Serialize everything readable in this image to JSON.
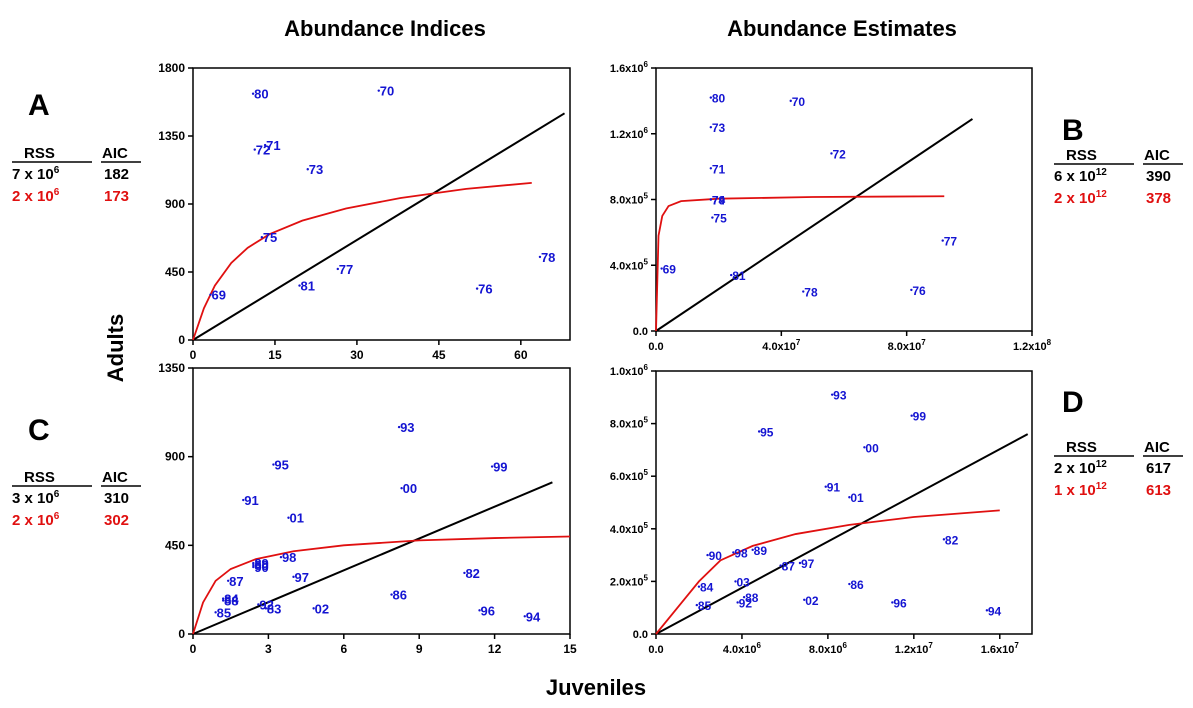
{
  "column_titles": {
    "left": "Abundance Indices",
    "right": "Abundance Estimates"
  },
  "y_axis_label": "Adults",
  "x_axis_label": "Juveniles",
  "colors": {
    "points": "#1414d2",
    "linear": "#000000",
    "curve": "#e01010",
    "red_text": "#e01010"
  },
  "panels": [
    {
      "letter": "A",
      "stats": {
        "rss_header": "RSS",
        "aic_header": "AIC",
        "rows": [
          {
            "rss": "7 x 10",
            "exp": "6",
            "aic": "182",
            "color": "#000000"
          },
          {
            "rss": "2 x 10",
            "exp": "6",
            "aic": "173",
            "color": "#e01010"
          }
        ]
      }
    },
    {
      "letter": "B",
      "stats": {
        "rss_header": "RSS",
        "aic_header": "AIC",
        "rows": [
          {
            "rss": "6 x 10",
            "exp": "12",
            "aic": "390",
            "color": "#000000"
          },
          {
            "rss": "2 x 10",
            "exp": "12",
            "aic": "378",
            "color": "#e01010"
          }
        ]
      }
    },
    {
      "letter": "C",
      "stats": {
        "rss_header": "RSS",
        "aic_header": "AIC",
        "rows": [
          {
            "rss": "3 x 10",
            "exp": "6",
            "aic": "310",
            "color": "#000000"
          },
          {
            "rss": "2 x 10",
            "exp": "6",
            "aic": "302",
            "color": "#e01010"
          }
        ]
      }
    },
    {
      "letter": "D",
      "stats": {
        "rss_header": "RSS",
        "aic_header": "AIC",
        "rows": [
          {
            "rss": "2 x 10",
            "exp": "12",
            "aic": "617",
            "color": "#000000"
          },
          {
            "rss": "1 x 10",
            "exp": "12",
            "aic": "613",
            "color": "#e01010"
          }
        ]
      }
    }
  ],
  "chart_data": [
    {
      "panel": "A",
      "type": "scatter",
      "x_range": [
        0,
        69
      ],
      "y_range": [
        0,
        1800
      ],
      "x_ticks": [
        {
          "v": 0,
          "l": "0"
        },
        {
          "v": 15,
          "l": "15"
        },
        {
          "v": 30,
          "l": "30"
        },
        {
          "v": 45,
          "l": "45"
        },
        {
          "v": 60,
          "l": "60"
        }
      ],
      "y_ticks": [
        {
          "v": 0,
          "l": "0"
        },
        {
          "v": 450,
          "l": "450"
        },
        {
          "v": 900,
          "l": "900"
        },
        {
          "v": 1350,
          "l": "1350"
        },
        {
          "v": 1800,
          "l": "1800"
        }
      ],
      "points": [
        {
          "label": "69",
          "x": 3.2,
          "y": 300
        },
        {
          "label": "70",
          "x": 34,
          "y": 1650
        },
        {
          "label": "71",
          "x": 13.2,
          "y": 1290
        },
        {
          "label": "72",
          "x": 11.3,
          "y": 1260
        },
        {
          "label": "73",
          "x": 21,
          "y": 1130
        },
        {
          "label": "75",
          "x": 12.6,
          "y": 680
        },
        {
          "label": "76",
          "x": 52,
          "y": 340
        },
        {
          "label": "77",
          "x": 26.5,
          "y": 470
        },
        {
          "label": "78",
          "x": 63.5,
          "y": 550
        },
        {
          "label": "80",
          "x": 11,
          "y": 1630
        },
        {
          "label": "81",
          "x": 19.5,
          "y": 360
        }
      ],
      "linear_fit": [
        [
          0,
          0
        ],
        [
          68,
          1500
        ]
      ],
      "curve_fit": [
        [
          0,
          0
        ],
        [
          2,
          210
        ],
        [
          4,
          360
        ],
        [
          7,
          510
        ],
        [
          10,
          610
        ],
        [
          14,
          700
        ],
        [
          20,
          790
        ],
        [
          28,
          870
        ],
        [
          38,
          940
        ],
        [
          50,
          1000
        ],
        [
          62,
          1040
        ]
      ]
    },
    {
      "panel": "B",
      "type": "scatter",
      "x_range": [
        0,
        120000000
      ],
      "y_range": [
        0,
        1600000
      ],
      "x_ticks": [
        {
          "v": 0,
          "l": "0.0"
        },
        {
          "v": 40000000,
          "l": "4.0x10",
          "e": "7"
        },
        {
          "v": 80000000,
          "l": "8.0x10",
          "e": "7"
        },
        {
          "v": 120000000,
          "l": "1.2x10",
          "e": "8"
        }
      ],
      "y_ticks": [
        {
          "v": 0,
          "l": "0.0"
        },
        {
          "v": 400000,
          "l": "4.0x10",
          "e": "5"
        },
        {
          "v": 800000,
          "l": "8.0x10",
          "e": "5"
        },
        {
          "v": 1200000,
          "l": "1.2x10",
          "e": "6"
        },
        {
          "v": 1600000,
          "l": "1.6x10",
          "e": "6"
        }
      ],
      "points": [
        {
          "label": "69",
          "x": 1800000,
          "y": 380000
        },
        {
          "label": "70",
          "x": 43000000,
          "y": 1400000
        },
        {
          "label": "71",
          "x": 17500000,
          "y": 990000
        },
        {
          "label": "72",
          "x": 56000000,
          "y": 1080000
        },
        {
          "label": "73",
          "x": 17500000,
          "y": 1240000
        },
        {
          "label": "74",
          "x": 17500000,
          "y": 800000
        },
        {
          "label": "75",
          "x": 18000000,
          "y": 690000
        },
        {
          "label": "76",
          "x": 81500000,
          "y": 250000
        },
        {
          "label": "77",
          "x": 91500000,
          "y": 550000
        },
        {
          "label": "78",
          "x": 47000000,
          "y": 240000
        },
        {
          "label": "79",
          "x": 17500000,
          "y": 800000
        },
        {
          "label": "80",
          "x": 17500000,
          "y": 1420000
        },
        {
          "label": "81",
          "x": 24000000,
          "y": 340000
        }
      ],
      "linear_fit": [
        [
          0,
          0
        ],
        [
          101000000,
          1290000
        ]
      ],
      "curve_fit": [
        [
          0,
          0
        ],
        [
          800000,
          580000
        ],
        [
          2000000,
          700000
        ],
        [
          4000000,
          760000
        ],
        [
          8000000,
          790000
        ],
        [
          20000000,
          805000
        ],
        [
          50000000,
          815000
        ],
        [
          92000000,
          820000
        ]
      ]
    },
    {
      "panel": "C",
      "type": "scatter",
      "x_range": [
        0,
        15
      ],
      "y_range": [
        0,
        1350
      ],
      "x_ticks": [
        {
          "v": 0,
          "l": "0"
        },
        {
          "v": 3,
          "l": "3"
        },
        {
          "v": 6,
          "l": "6"
        },
        {
          "v": 9,
          "l": "9"
        },
        {
          "v": 12,
          "l": "12"
        },
        {
          "v": 15,
          "l": "15"
        }
      ],
      "y_ticks": [
        {
          "v": 0,
          "l": "0"
        },
        {
          "v": 450,
          "l": "450"
        },
        {
          "v": 900,
          "l": "900"
        },
        {
          "v": 1350,
          "l": "1350"
        }
      ],
      "points": [
        {
          "label": "00",
          "x": 8.3,
          "y": 740
        },
        {
          "label": "01",
          "x": 3.8,
          "y": 590
        },
        {
          "label": "02",
          "x": 4.8,
          "y": 130
        },
        {
          "label": "80",
          "x": 2.4,
          "y": 350
        },
        {
          "label": "82",
          "x": 10.8,
          "y": 310
        },
        {
          "label": "83",
          "x": 2.9,
          "y": 130
        },
        {
          "label": "84",
          "x": 1.2,
          "y": 180
        },
        {
          "label": "85",
          "x": 0.9,
          "y": 110
        },
        {
          "label": "86",
          "x": 7.9,
          "y": 200
        },
        {
          "label": "87",
          "x": 1.4,
          "y": 270
        },
        {
          "label": "88",
          "x": 1.2,
          "y": 170
        },
        {
          "label": "89",
          "x": 2.4,
          "y": 360
        },
        {
          "label": "90",
          "x": 2.4,
          "y": 340
        },
        {
          "label": "91",
          "x": 2,
          "y": 680
        },
        {
          "label": "92",
          "x": 2.6,
          "y": 150
        },
        {
          "label": "93",
          "x": 8.2,
          "y": 1050
        },
        {
          "label": "94",
          "x": 13.2,
          "y": 90
        },
        {
          "label": "95",
          "x": 3.2,
          "y": 860
        },
        {
          "label": "96",
          "x": 11.4,
          "y": 120
        },
        {
          "label": "97",
          "x": 4,
          "y": 290
        },
        {
          "label": "98",
          "x": 3.5,
          "y": 390
        },
        {
          "label": "99",
          "x": 11.9,
          "y": 850
        }
      ],
      "linear_fit": [
        [
          0,
          0
        ],
        [
          14.3,
          770
        ]
      ],
      "curve_fit": [
        [
          0,
          0
        ],
        [
          0.4,
          160
        ],
        [
          0.9,
          270
        ],
        [
          1.5,
          330
        ],
        [
          2.5,
          380
        ],
        [
          4,
          420
        ],
        [
          6,
          450
        ],
        [
          9,
          475
        ],
        [
          12,
          487
        ],
        [
          15,
          495
        ]
      ]
    },
    {
      "panel": "D",
      "type": "scatter",
      "x_range": [
        0,
        17500000
      ],
      "y_range": [
        0,
        1000000
      ],
      "x_ticks": [
        {
          "v": 0,
          "l": "0.0"
        },
        {
          "v": 4000000,
          "l": "4.0x10",
          "e": "6"
        },
        {
          "v": 8000000,
          "l": "8.0x10",
          "e": "6"
        },
        {
          "v": 12000000,
          "l": "1.2x10",
          "e": "7"
        },
        {
          "v": 16000000,
          "l": "1.6x10",
          "e": "7"
        }
      ],
      "y_ticks": [
        {
          "v": 0,
          "l": "0.0"
        },
        {
          "v": 200000,
          "l": "2.0x10",
          "e": "5"
        },
        {
          "v": 400000,
          "l": "4.0x10",
          "e": "5"
        },
        {
          "v": 600000,
          "l": "6.0x10",
          "e": "5"
        },
        {
          "v": 800000,
          "l": "8.0x10",
          "e": "5"
        },
        {
          "v": 1000000,
          "l": "1.0x10",
          "e": "6"
        }
      ],
      "points": [
        {
          "label": "00",
          "x": 9700000,
          "y": 710000
        },
        {
          "label": "01",
          "x": 9000000,
          "y": 520000
        },
        {
          "label": "02",
          "x": 6900000,
          "y": 130000
        },
        {
          "label": "03",
          "x": 3700000,
          "y": 200000
        },
        {
          "label": "82",
          "x": 13400000,
          "y": 360000
        },
        {
          "label": "84",
          "x": 2000000,
          "y": 180000
        },
        {
          "label": "85",
          "x": 1900000,
          "y": 110000
        },
        {
          "label": "86",
          "x": 9000000,
          "y": 190000
        },
        {
          "label": "87",
          "x": 5800000,
          "y": 260000
        },
        {
          "label": "88",
          "x": 4100000,
          "y": 140000
        },
        {
          "label": "89",
          "x": 4500000,
          "y": 320000
        },
        {
          "label": "90",
          "x": 2400000,
          "y": 300000
        },
        {
          "label": "91",
          "x": 7900000,
          "y": 560000
        },
        {
          "label": "92",
          "x": 3800000,
          "y": 120000
        },
        {
          "label": "93",
          "x": 8200000,
          "y": 910000
        },
        {
          "label": "94",
          "x": 15400000,
          "y": 90000
        },
        {
          "label": "95",
          "x": 4800000,
          "y": 770000
        },
        {
          "label": "96",
          "x": 11000000,
          "y": 120000
        },
        {
          "label": "97",
          "x": 6700000,
          "y": 270000
        },
        {
          "label": "98",
          "x": 3600000,
          "y": 310000
        },
        {
          "label": "99",
          "x": 11900000,
          "y": 830000
        }
      ],
      "linear_fit": [
        [
          0,
          0
        ],
        [
          17300000,
          760000
        ]
      ],
      "curve_fit": [
        [
          0,
          0
        ],
        [
          1200000,
          120000
        ],
        [
          2000000,
          200000
        ],
        [
          3000000,
          280000
        ],
        [
          4500000,
          335000
        ],
        [
          6500000,
          380000
        ],
        [
          9000000,
          415000
        ],
        [
          12000000,
          445000
        ],
        [
          16000000,
          470000
        ]
      ]
    }
  ]
}
